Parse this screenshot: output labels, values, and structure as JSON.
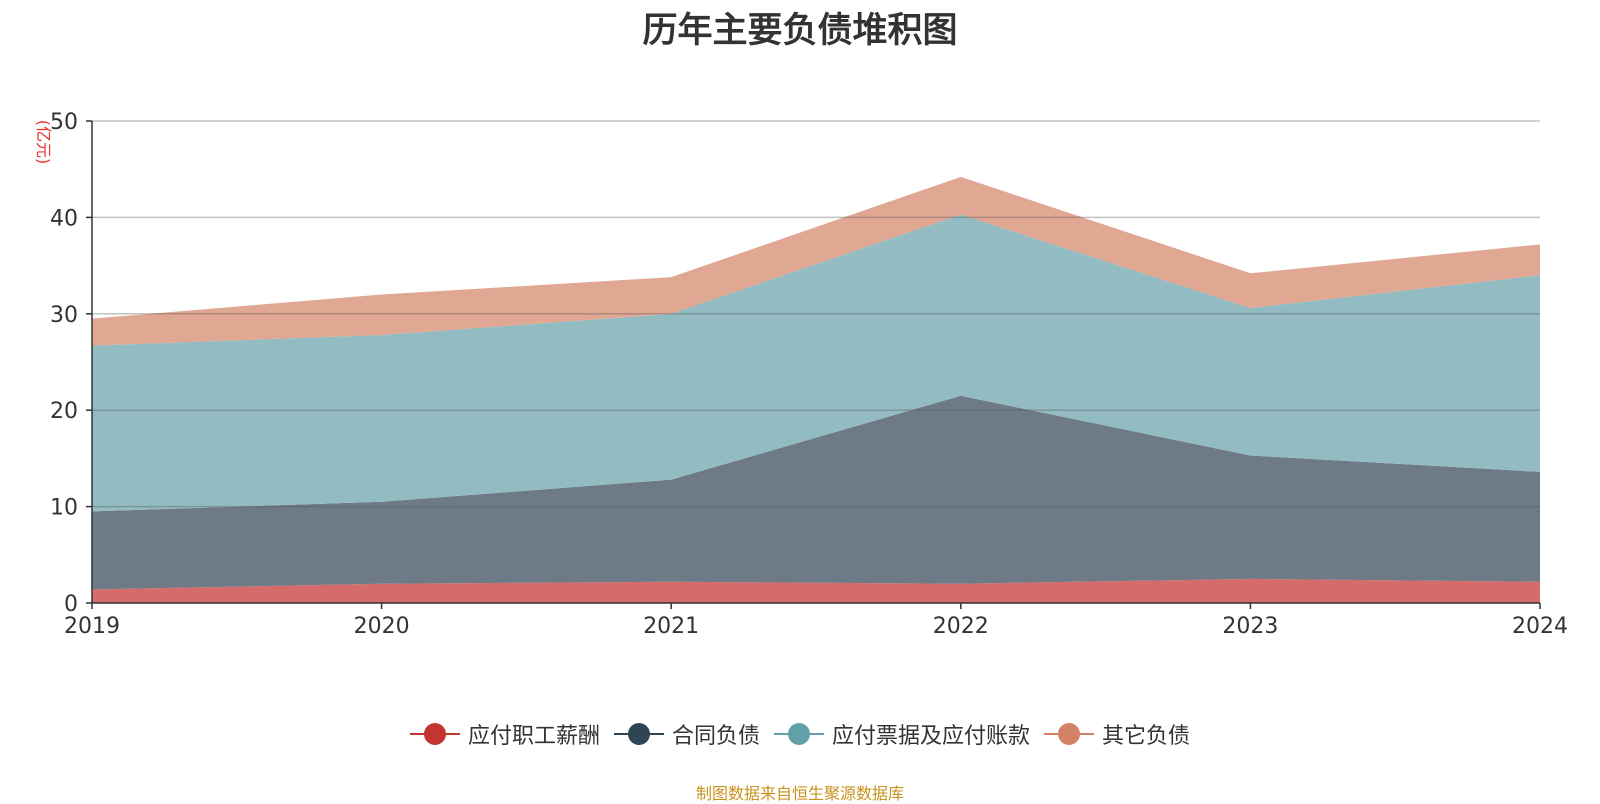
{
  "chart_data": {
    "type": "area",
    "stacked": true,
    "title": "历年主要负债堆积图",
    "ylabel": "(亿元)",
    "xlabel": "",
    "x": [
      "2019",
      "2020",
      "2021",
      "2022",
      "2023",
      "2024"
    ],
    "ylim": [
      0,
      50
    ],
    "yticks": [
      0,
      10,
      20,
      30,
      40,
      50
    ],
    "grid": true,
    "legend_position": "bottom",
    "series": [
      {
        "name": "应付职工薪酬",
        "color": "#d66b6b",
        "legend_color": "#c23531",
        "values": [
          1.4,
          2.0,
          2.2,
          2.0,
          2.5,
          2.2
        ]
      },
      {
        "name": "合同负债",
        "color": "#6e7b86",
        "legend_color": "#2f4554",
        "values": [
          8.1,
          8.5,
          10.6,
          19.5,
          12.8,
          11.4
        ]
      },
      {
        "name": "应付票据及应付账款",
        "color": "#93bcc2",
        "legend_color": "#61a0a8",
        "values": [
          17.2,
          17.3,
          17.2,
          18.8,
          15.3,
          20.4
        ]
      },
      {
        "name": "其它负债",
        "color": "#e0a793",
        "legend_color": "#d48265",
        "values": [
          2.8,
          4.2,
          3.8,
          3.9,
          3.6,
          3.2
        ]
      }
    ],
    "source_note": "制图数据来自恒生聚源数据库"
  }
}
